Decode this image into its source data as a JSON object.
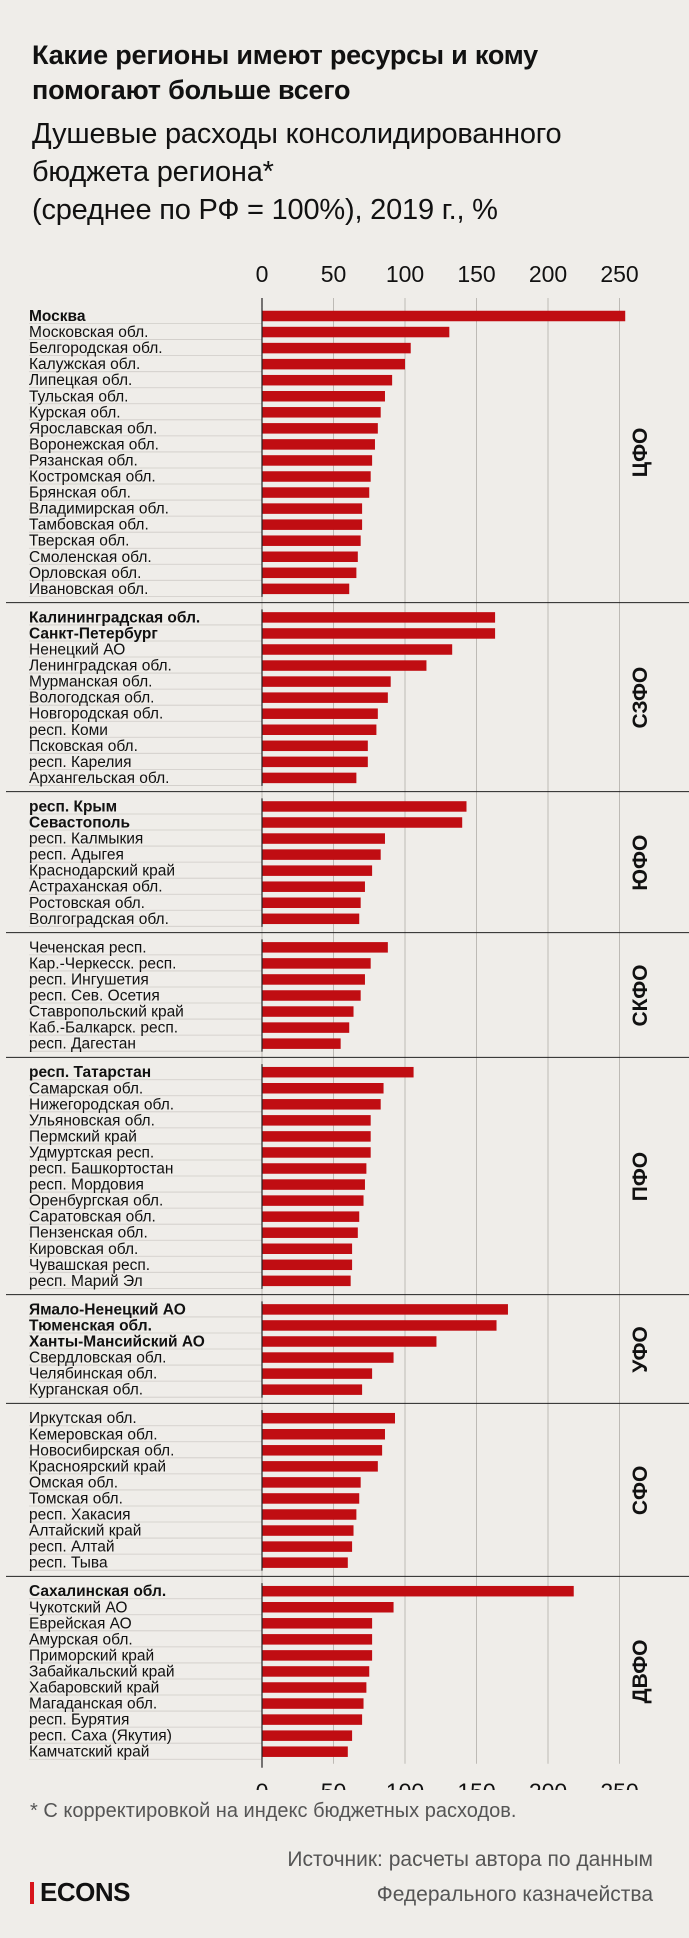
{
  "title": "Какие регионы имеют ресурсы и кому помогают больше всего",
  "subtitle_lines": [
    "Душевые расходы консолидированного",
    "бюджета региона*",
    "(среднее по РФ = 100%), 2019 г., %"
  ],
  "footnote": "* С корректировкой на индекс бюджетных расходов.",
  "source_line1": "Источник: расчеты автора по данным",
  "source_line2": "Федерального казначейства",
  "logo_text": "ECONS",
  "colors": {
    "bar": "#c00d12",
    "background": "#efede9",
    "logo_accent": "#d7141a"
  },
  "chart_data": {
    "type": "bar",
    "orientation": "horizontal",
    "xlim": [
      0,
      250
    ],
    "x_ticks": [
      0,
      50,
      100,
      150,
      200,
      250
    ],
    "groups": [
      {
        "name": "ЦФО",
        "items": [
          {
            "label": "Москва",
            "value": 254,
            "bold": true
          },
          {
            "label": "Московская обл.",
            "value": 131
          },
          {
            "label": "Белгородская обл.",
            "value": 104
          },
          {
            "label": "Калужская обл.",
            "value": 100
          },
          {
            "label": "Липецкая обл.",
            "value": 91
          },
          {
            "label": "Тульская обл.",
            "value": 86
          },
          {
            "label": "Курская обл.",
            "value": 83
          },
          {
            "label": "Ярославская обл.",
            "value": 81
          },
          {
            "label": "Воронежская обл.",
            "value": 79
          },
          {
            "label": "Рязанская обл.",
            "value": 77
          },
          {
            "label": "Костромская обл.",
            "value": 76
          },
          {
            "label": "Брянская обл.",
            "value": 75
          },
          {
            "label": "Владимирская обл.",
            "value": 70
          },
          {
            "label": "Тамбовская обл.",
            "value": 70
          },
          {
            "label": "Тверская обл.",
            "value": 69
          },
          {
            "label": "Смоленская обл.",
            "value": 67
          },
          {
            "label": "Орловская обл.",
            "value": 66
          },
          {
            "label": "Ивановская обл.",
            "value": 61
          }
        ]
      },
      {
        "name": "СЗФО",
        "items": [
          {
            "label": "Калининградская обл.",
            "value": 163,
            "bold": true
          },
          {
            "label": "Санкт-Петербург",
            "value": 163,
            "bold": true
          },
          {
            "label": "Ненецкий АО",
            "value": 133
          },
          {
            "label": "Ленинградская обл.",
            "value": 115
          },
          {
            "label": "Мурманская обл.",
            "value": 90
          },
          {
            "label": "Вологодская обл.",
            "value": 88
          },
          {
            "label": "Новгородская обл.",
            "value": 81
          },
          {
            "label": "респ. Коми",
            "value": 80
          },
          {
            "label": "Псковская обл.",
            "value": 74
          },
          {
            "label": "респ. Карелия",
            "value": 74
          },
          {
            "label": "Архангельская обл.",
            "value": 66
          }
        ]
      },
      {
        "name": "ЮФО",
        "items": [
          {
            "label": "респ. Крым",
            "value": 143,
            "bold": true
          },
          {
            "label": "Севастополь",
            "value": 140,
            "bold": true
          },
          {
            "label": "респ. Калмыкия",
            "value": 86
          },
          {
            "label": "респ. Адыгея",
            "value": 83
          },
          {
            "label": "Краснодарский край",
            "value": 77
          },
          {
            "label": "Астраханская обл.",
            "value": 72
          },
          {
            "label": "Ростовская обл.",
            "value": 69
          },
          {
            "label": "Волгоградская обл.",
            "value": 68
          }
        ]
      },
      {
        "name": "СКФО",
        "items": [
          {
            "label": "Чеченская респ.",
            "value": 88
          },
          {
            "label": "Кар.-Черкесск. респ.",
            "value": 76
          },
          {
            "label": "респ. Ингушетия",
            "value": 72
          },
          {
            "label": "респ. Сев. Осетия",
            "value": 69
          },
          {
            "label": "Ставропольский край",
            "value": 64
          },
          {
            "label": "Каб.-Балкарск. респ.",
            "value": 61
          },
          {
            "label": "респ. Дагестан",
            "value": 55
          }
        ]
      },
      {
        "name": "ПФО",
        "items": [
          {
            "label": "респ. Татарстан",
            "value": 106,
            "bold": true
          },
          {
            "label": "Самарская обл.",
            "value": 85
          },
          {
            "label": "Нижегородская обл.",
            "value": 83
          },
          {
            "label": "Ульяновская обл.",
            "value": 76
          },
          {
            "label": "Пермский край",
            "value": 76
          },
          {
            "label": "Удмуртская респ.",
            "value": 76
          },
          {
            "label": "респ. Башкортостан",
            "value": 73
          },
          {
            "label": "респ. Мордовия",
            "value": 72
          },
          {
            "label": "Оренбургская обл.",
            "value": 71
          },
          {
            "label": "Саратовская обл.",
            "value": 68
          },
          {
            "label": "Пензенская обл.",
            "value": 67
          },
          {
            "label": "Кировская обл.",
            "value": 63
          },
          {
            "label": "Чувашская респ.",
            "value": 63
          },
          {
            "label": "респ. Марий Эл",
            "value": 62
          }
        ]
      },
      {
        "name": "УФО",
        "items": [
          {
            "label": "Ямало-Ненецкий АО",
            "value": 172,
            "bold": true
          },
          {
            "label": "Тюменская обл.",
            "value": 164,
            "bold": true
          },
          {
            "label": "Ханты-Мансийский АО",
            "value": 122,
            "bold": true
          },
          {
            "label": "Свердловская обл.",
            "value": 92
          },
          {
            "label": "Челябинская обл.",
            "value": 77
          },
          {
            "label": "Курганская обл.",
            "value": 70
          }
        ]
      },
      {
        "name": "СФО",
        "items": [
          {
            "label": "Иркутская обл.",
            "value": 93
          },
          {
            "label": "Кемеровская обл.",
            "value": 86
          },
          {
            "label": "Новосибирская обл.",
            "value": 84
          },
          {
            "label": "Красноярский край",
            "value": 81
          },
          {
            "label": "Омская обл.",
            "value": 69
          },
          {
            "label": "Томская обл.",
            "value": 68
          },
          {
            "label": "респ. Хакасия",
            "value": 66
          },
          {
            "label": "Алтайский край",
            "value": 64
          },
          {
            "label": "респ. Алтай",
            "value": 63
          },
          {
            "label": "респ. Тыва",
            "value": 60
          }
        ]
      },
      {
        "name": "ДВФО",
        "items": [
          {
            "label": "Сахалинская обл.",
            "value": 218,
            "bold": true
          },
          {
            "label": "Чукотский АО",
            "value": 92
          },
          {
            "label": "Еврейская АО",
            "value": 77
          },
          {
            "label": "Амурская обл.",
            "value": 77
          },
          {
            "label": "Приморский край",
            "value": 77
          },
          {
            "label": "Забайкальский край",
            "value": 75
          },
          {
            "label": "Хабаровский край",
            "value": 73
          },
          {
            "label": "Магаданская обл.",
            "value": 71
          },
          {
            "label": "респ. Бурятия",
            "value": 70
          },
          {
            "label": "респ. Саха (Якутия)",
            "value": 63
          },
          {
            "label": "Камчатский край",
            "value": 60
          }
        ]
      }
    ]
  }
}
